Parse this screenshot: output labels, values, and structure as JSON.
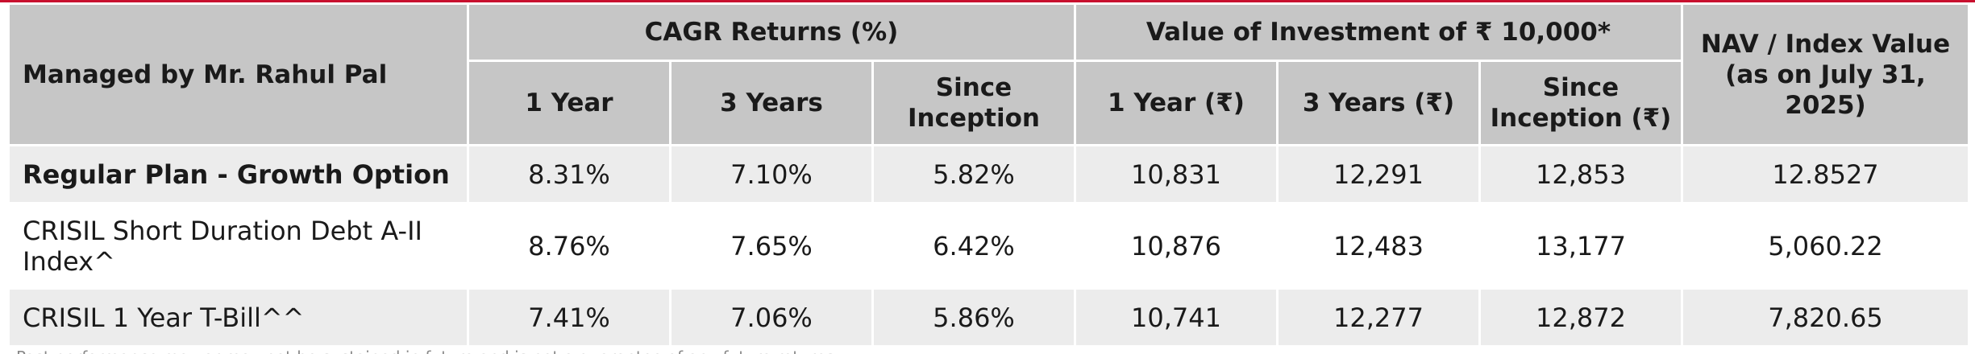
{
  "table": {
    "corner_label": "Managed by Mr. Rahul Pal",
    "group_cagr": "CAGR Returns (%)",
    "group_value": "Value of Investment of ₹ 10,000*",
    "nav_header": "NAV / Index Value (as on July 31, 2025)",
    "sub_headers": [
      "1 Year",
      "3 Years",
      "Since Inception",
      "1 Year (₹)",
      "3 Years (₹)",
      "Since Inception (₹)"
    ],
    "rows": [
      {
        "label": "Regular Plan - Growth Option",
        "values": [
          "8.31%",
          "7.10%",
          "5.82%",
          "10,831",
          "12,291",
          "12,853",
          "12.8527"
        ]
      },
      {
        "label": "CRISIL Short Duration Debt A-II Index^",
        "values": [
          "8.76%",
          "7.65%",
          "6.42%",
          "10,876",
          "12,483",
          "13,177",
          "5,060.22"
        ]
      },
      {
        "label": "CRISIL 1 Year T-Bill^^",
        "values": [
          "7.41%",
          "7.06%",
          "5.86%",
          "10,741",
          "12,277",
          "12,872",
          "7,820.65"
        ]
      }
    ]
  },
  "colors": {
    "accent_line": "#c8102e",
    "header_bg": "#c6c6c6",
    "row_alt_bg": "#ececec"
  },
  "footnote": "Past performance may or may not be sustained in future and is not a guarantee of any future returns"
}
